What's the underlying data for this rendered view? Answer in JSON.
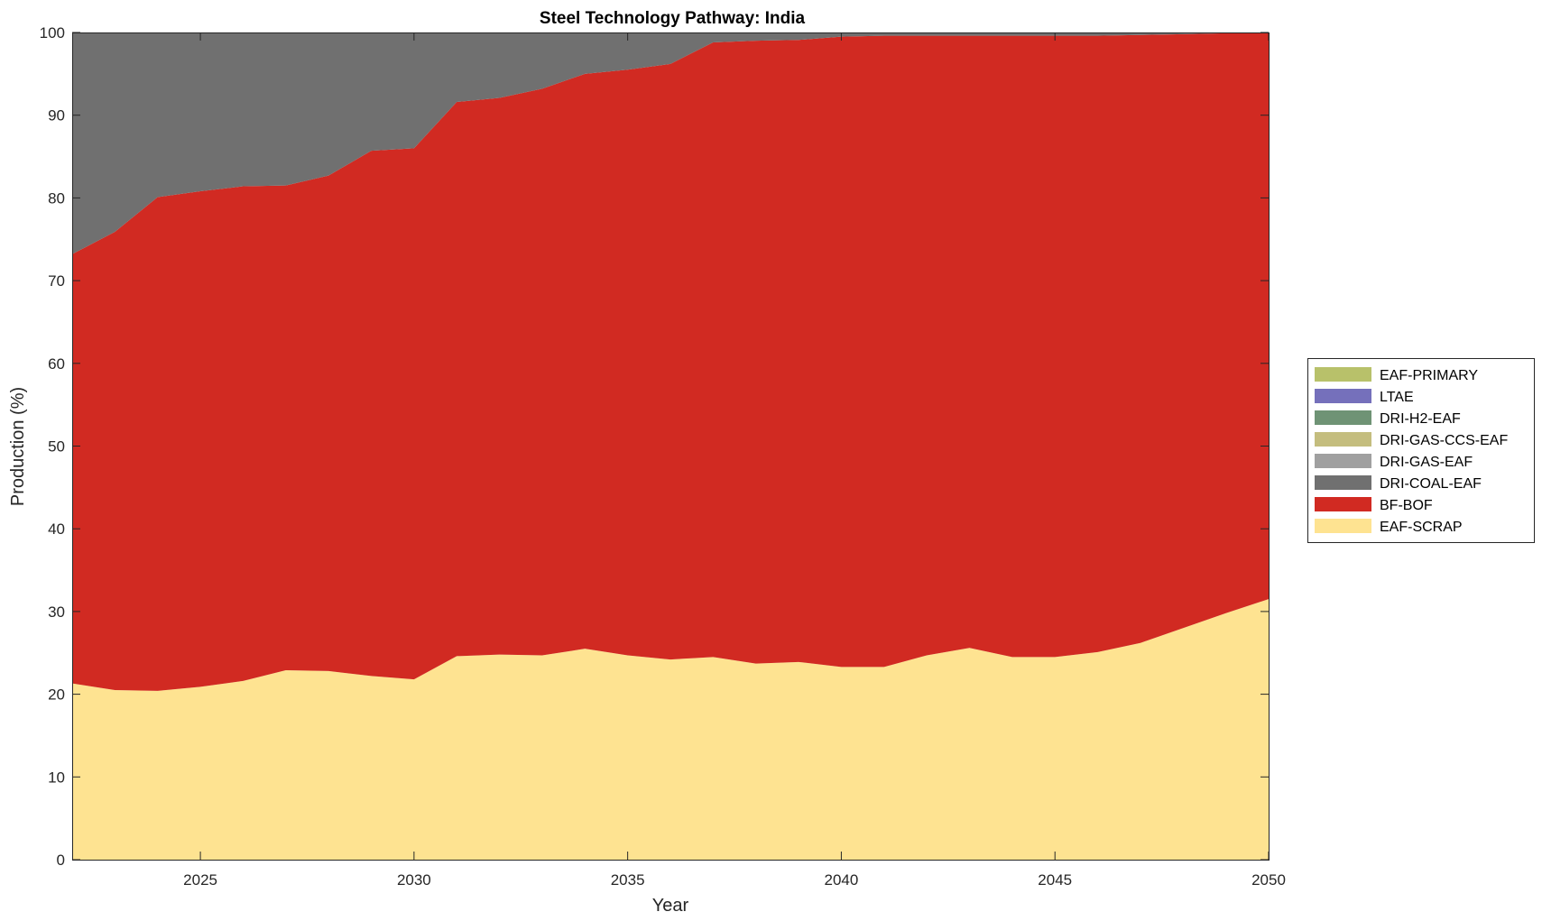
{
  "chart_data": {
    "type": "area",
    "stacked": true,
    "title": "Steel Technology Pathway: India",
    "xlabel": "Year",
    "ylabel": "Production (%)",
    "xlim": [
      2022,
      2050
    ],
    "ylim": [
      0,
      100
    ],
    "xticks": [
      2025,
      2030,
      2035,
      2040,
      2045,
      2050
    ],
    "yticks": [
      0,
      10,
      20,
      30,
      40,
      50,
      60,
      70,
      80,
      90,
      100
    ],
    "grid": false,
    "legend_position": "right",
    "x": [
      2022,
      2023,
      2024,
      2025,
      2026,
      2027,
      2028,
      2029,
      2030,
      2031,
      2032,
      2033,
      2034,
      2035,
      2036,
      2037,
      2038,
      2039,
      2040,
      2041,
      2042,
      2043,
      2044,
      2045,
      2046,
      2047,
      2048,
      2049,
      2050
    ],
    "series": [
      {
        "name": "EAF-SCRAP",
        "color": "#fee391",
        "values": [
          21.3,
          20.5,
          20.4,
          20.9,
          21.6,
          22.9,
          22.8,
          22.2,
          21.8,
          24.6,
          24.8,
          24.7,
          25.5,
          24.7,
          24.2,
          24.5,
          23.7,
          23.9,
          23.3,
          23.3,
          24.7,
          25.6,
          24.5,
          24.5,
          25.1,
          26.2,
          28.0,
          29.8,
          31.5
        ]
      },
      {
        "name": "BF-BOF",
        "color": "#d12a22",
        "values": [
          51.9,
          55.4,
          59.7,
          59.9,
          59.8,
          58.6,
          59.9,
          63.5,
          64.2,
          67.0,
          67.3,
          68.5,
          69.5,
          70.8,
          72.0,
          74.3,
          75.3,
          75.2,
          76.2,
          76.3,
          74.9,
          74.0,
          75.1,
          75.1,
          74.5,
          73.5,
          71.8,
          70.1,
          68.5
        ]
      },
      {
        "name": "DRI-COAL-EAF",
        "color": "#707070",
        "values": [
          26.8,
          24.1,
          19.9,
          19.2,
          18.6,
          18.5,
          17.3,
          14.3,
          14.0,
          8.4,
          7.9,
          6.8,
          5.0,
          4.5,
          3.8,
          1.2,
          1.0,
          0.9,
          0.5,
          0.4,
          0.4,
          0.4,
          0.4,
          0.4,
          0.4,
          0.3,
          0.2,
          0.1,
          0.0
        ]
      },
      {
        "name": "DRI-GAS-EAF",
        "color": "#a0a0a0",
        "values": [
          0,
          0,
          0,
          0,
          0,
          0,
          0,
          0,
          0,
          0,
          0,
          0,
          0,
          0,
          0,
          0,
          0,
          0,
          0,
          0,
          0,
          0,
          0,
          0,
          0,
          0,
          0,
          0,
          0
        ]
      },
      {
        "name": "DRI-GAS-CCS-EAF",
        "color": "#c4bd7e",
        "values": [
          0,
          0,
          0,
          0,
          0,
          0,
          0,
          0,
          0,
          0,
          0,
          0,
          0,
          0,
          0,
          0,
          0,
          0,
          0,
          0,
          0,
          0,
          0,
          0,
          0,
          0,
          0,
          0,
          0
        ]
      },
      {
        "name": "DRI-H2-EAF",
        "color": "#6f9375",
        "values": [
          0,
          0,
          0,
          0,
          0,
          0,
          0,
          0,
          0,
          0,
          0,
          0,
          0,
          0,
          0,
          0,
          0,
          0,
          0,
          0,
          0,
          0,
          0,
          0,
          0,
          0,
          0,
          0,
          0
        ]
      },
      {
        "name": "LTAE",
        "color": "#7570bb",
        "values": [
          0,
          0,
          0,
          0,
          0,
          0,
          0,
          0,
          0,
          0,
          0,
          0,
          0,
          0,
          0,
          0,
          0,
          0,
          0,
          0,
          0,
          0,
          0,
          0,
          0,
          0,
          0,
          0,
          0
        ]
      },
      {
        "name": "EAF-PRIMARY",
        "color": "#b8c16a",
        "values": [
          0,
          0,
          0,
          0,
          0,
          0,
          0,
          0,
          0,
          0,
          0,
          0,
          0,
          0,
          0,
          0,
          0,
          0,
          0,
          0,
          0,
          0,
          0,
          0,
          0,
          0,
          0,
          0,
          0
        ]
      }
    ]
  }
}
